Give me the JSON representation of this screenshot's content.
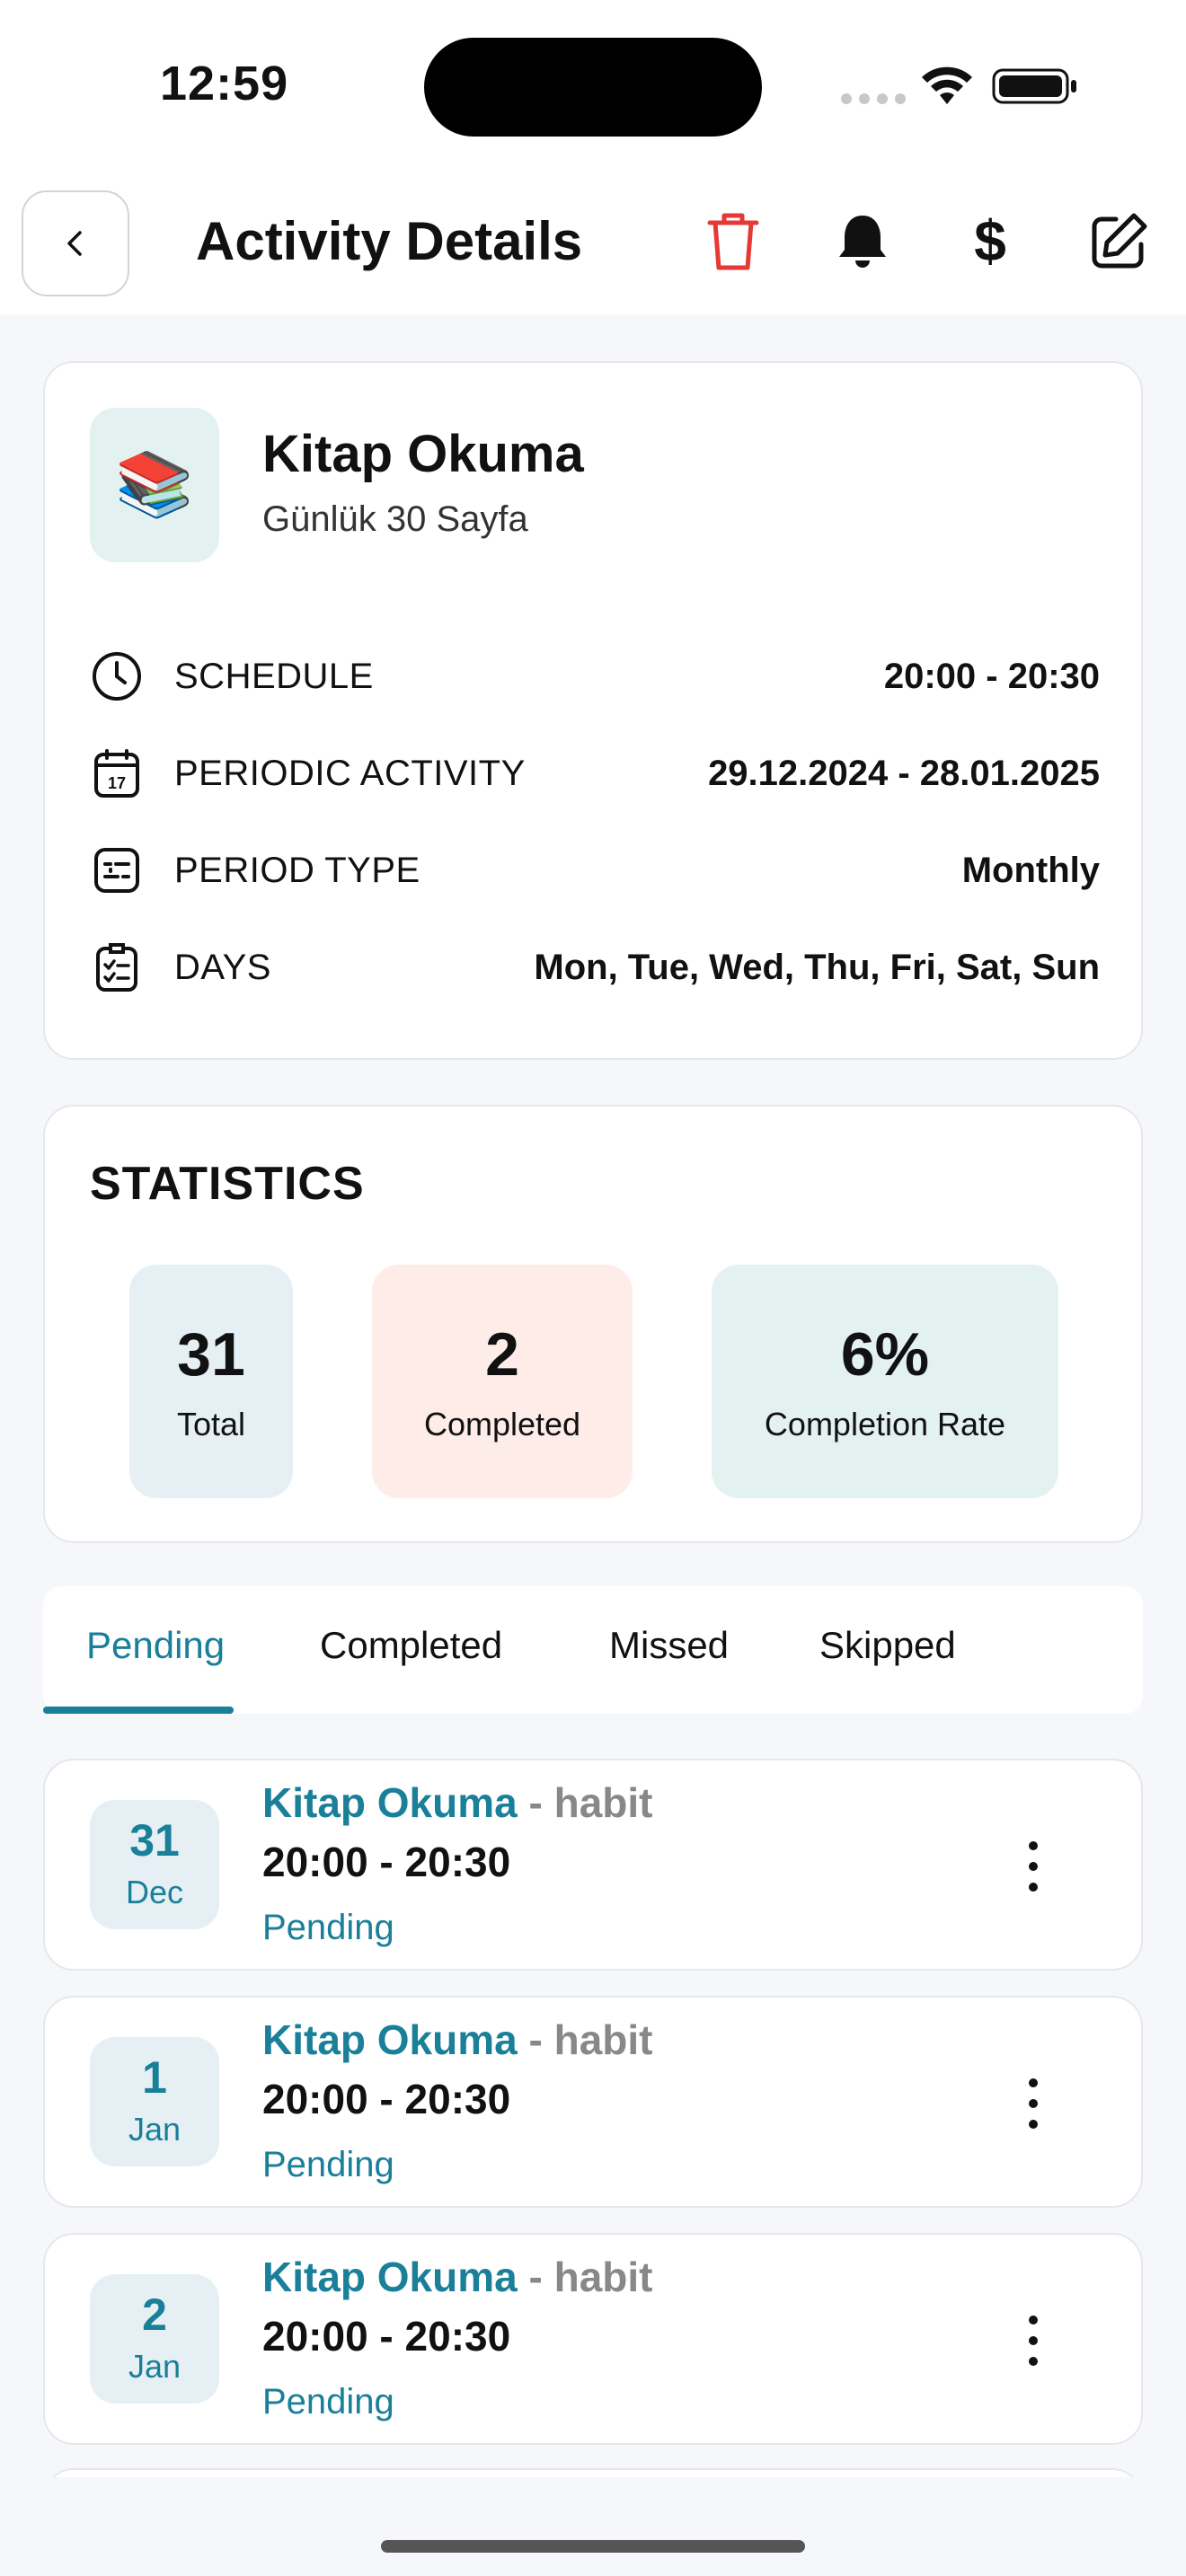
{
  "status_bar": {
    "time": "12:59"
  },
  "header": {
    "title": "Activity Details"
  },
  "activity": {
    "emoji": "📚",
    "name": "Kitap Okuma",
    "subtitle": "Günlük 30 Sayfa",
    "rows": [
      {
        "label": "SCHEDULE",
        "value": "20:00 - 20:30",
        "icon": "clock-icon"
      },
      {
        "label": "PERIODIC ACTIVITY",
        "value": "29.12.2024 - 28.01.2025",
        "icon": "calendar-icon"
      },
      {
        "label": "PERIOD TYPE",
        "value": "Monthly",
        "icon": "period-type-icon"
      },
      {
        "label": "DAYS",
        "value": "Mon, Tue, Wed, Thu, Fri, Sat, Sun",
        "icon": "checklist-icon"
      }
    ]
  },
  "statistics": {
    "title": "STATISTICS",
    "total": {
      "value": "31",
      "label": "Total"
    },
    "completed": {
      "value": "2",
      "label": "Completed"
    },
    "rate": {
      "value": "6%",
      "label": "Completion Rate"
    }
  },
  "tabs": [
    "Pending",
    "Completed",
    "Missed",
    "Skipped"
  ],
  "active_tab": "Pending",
  "items": [
    {
      "day": "31",
      "month": "Dec",
      "name": "Kitap Okuma",
      "type": " - habit",
      "time": "20:00 - 20:30",
      "status": "Pending"
    },
    {
      "day": "1",
      "month": "Jan",
      "name": "Kitap Okuma",
      "type": " - habit",
      "time": "20:00 - 20:30",
      "status": "Pending"
    },
    {
      "day": "2",
      "month": "Jan",
      "name": "Kitap Okuma",
      "type": " - habit",
      "time": "20:00 - 20:30",
      "status": "Pending"
    }
  ],
  "colors": {
    "accent": "#1a7f99",
    "delete": "#e53935",
    "stat_total_bg": "#e6f0f4",
    "stat_completed_bg": "#fdece8",
    "stat_rate_bg": "#e3f1f1"
  }
}
